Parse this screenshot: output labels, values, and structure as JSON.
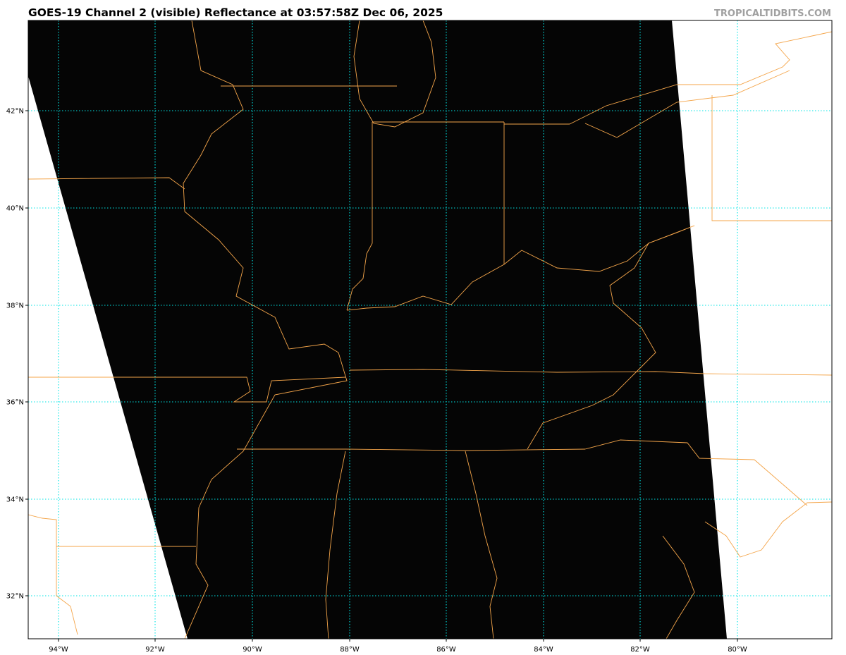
{
  "title": "GOES-19 Channel 2 (visible) Reflectance at 03:57:58Z Dec 06, 2025",
  "credit": "TROPICALTIDBITS.COM",
  "map": {
    "satellite": "GOES-19",
    "channel": "Channel 2 (visible)",
    "product": "Reflectance",
    "extent": {
      "lon": [
        -94.6,
        -78.1
      ],
      "lat": [
        31.1,
        43.8
      ]
    },
    "lat_labels": [
      "42°N",
      "40°N",
      "38°N",
      "36°N",
      "34°N",
      "32°N"
    ],
    "lon_labels": [
      "94°W",
      "92°W",
      "90°W",
      "88°W",
      "86°W",
      "84°W",
      "82°W",
      "80°W"
    ],
    "colors": {
      "imagery": "#050505",
      "gridlines": "#00e5e5",
      "borders": "#f4a54a",
      "no_data": "#ffffff"
    }
  }
}
